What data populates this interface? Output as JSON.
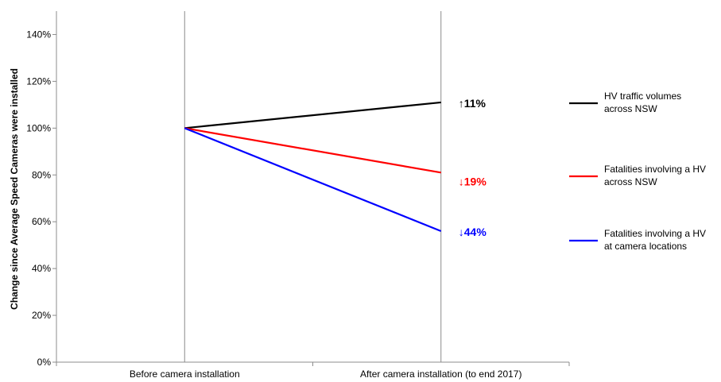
{
  "chart_data": {
    "type": "line",
    "ylabel": "Change since Average Speed Cameras were installed",
    "xlabel": "",
    "categories": [
      "Before camera installation",
      "After camera installation (to end 2017)"
    ],
    "ylim": [
      0,
      150
    ],
    "yticks": [
      0,
      20,
      40,
      60,
      80,
      100,
      120,
      140
    ],
    "ytick_labels": [
      "0%",
      "20%",
      "40%",
      "60%",
      "80%",
      "100%",
      "120%",
      "140%"
    ],
    "grid": "vertical lines at categories",
    "legend_position": "right",
    "series": [
      {
        "name": "HV traffic volumes across NSW",
        "name_lines": [
          "HV traffic volumes",
          "across NSW"
        ],
        "values": [
          100,
          111
        ],
        "color": "#000000",
        "change_label": "↑11%",
        "label_color": "#000000"
      },
      {
        "name": "Fatalities involving a HV across NSW",
        "name_lines": [
          "Fatalities involving a HV",
          "across NSW"
        ],
        "values": [
          100,
          81
        ],
        "color": "#ff0000",
        "change_label": "↓19%",
        "label_color": "#ff0000"
      },
      {
        "name": "Fatalities involving a HV at camera locations",
        "name_lines": [
          "Fatalities involving a HV",
          "at camera locations"
        ],
        "values": [
          100,
          56
        ],
        "color": "#0000ff",
        "change_label": "↓44%",
        "label_color": "#0000ff"
      }
    ]
  }
}
